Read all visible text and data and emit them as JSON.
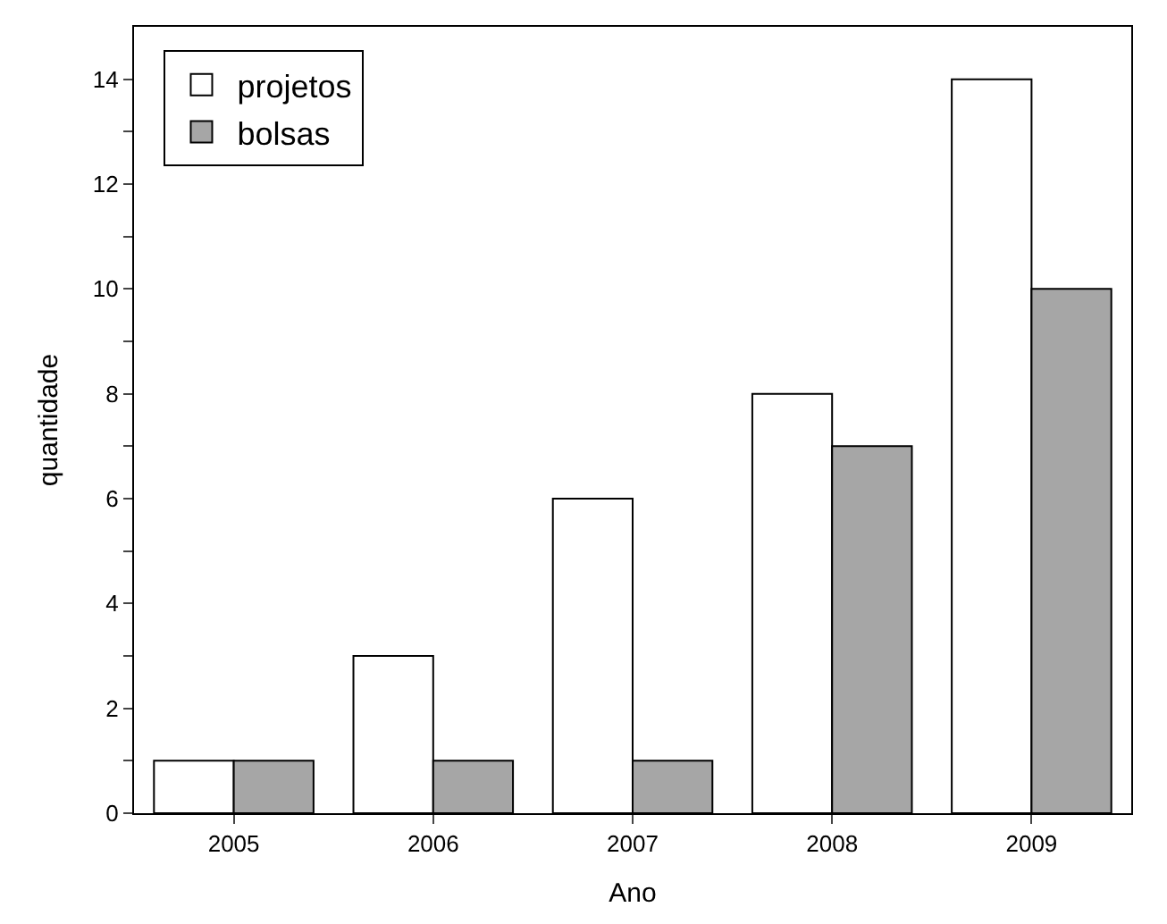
{
  "chart_data": {
    "type": "bar",
    "xlabel": "Ano",
    "ylabel": "quantidade",
    "categories": [
      "2005",
      "2006",
      "2007",
      "2008",
      "2009"
    ],
    "series": [
      {
        "name": "projetos",
        "color": "#ffffff",
        "values": [
          1,
          3,
          6,
          8,
          14
        ]
      },
      {
        "name": "bolsas",
        "color": "#a6a6a6",
        "values": [
          1,
          1,
          1,
          7,
          10
        ]
      }
    ],
    "ylim": [
      0,
      15
    ],
    "yticks": [
      0,
      {
        "value": 1,
        "label": null
      },
      2,
      {
        "value": 3,
        "label": null
      },
      4,
      {
        "value": 5,
        "label": null
      },
      6,
      {
        "value": 7,
        "label": null
      },
      8,
      {
        "value": 9,
        "label": null
      },
      10,
      {
        "value": 11,
        "label": null
      },
      12,
      {
        "value": 13,
        "label": null
      },
      14
    ],
    "legend": "top left"
  }
}
